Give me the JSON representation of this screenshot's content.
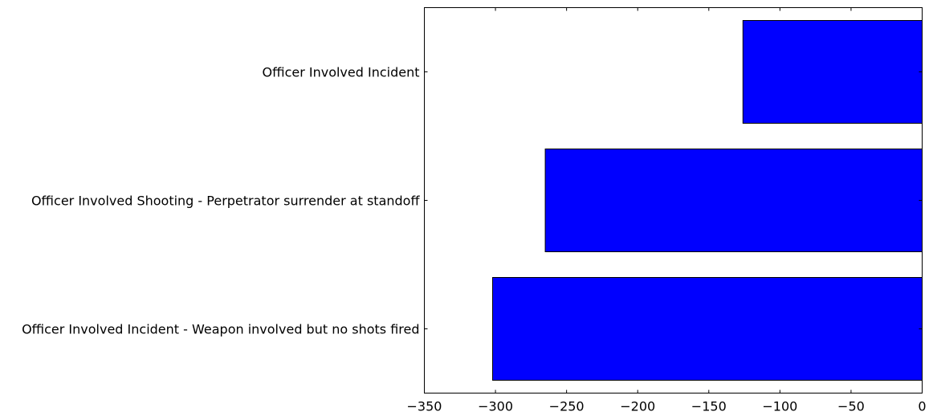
{
  "chart_data": {
    "type": "bar",
    "orientation": "horizontal",
    "categories": [
      "Officer Involved Incident",
      "Officer Involved Shooting - Perpetrator surrender at standoff",
      "Officer Involved Incident - Weapon involved but no shots fired"
    ],
    "values": [
      -126,
      -265,
      -302
    ],
    "xlim": [
      -350,
      0
    ],
    "xticks": [
      -350,
      -300,
      -250,
      -200,
      -150,
      -100,
      -50,
      0
    ],
    "xtick_labels": [
      "−350",
      "−300",
      "−250",
      "−200",
      "−150",
      "−100",
      "−50",
      "0"
    ],
    "bar_color": "#0000ff",
    "grid": false,
    "title": "",
    "xlabel": "",
    "ylabel": ""
  }
}
